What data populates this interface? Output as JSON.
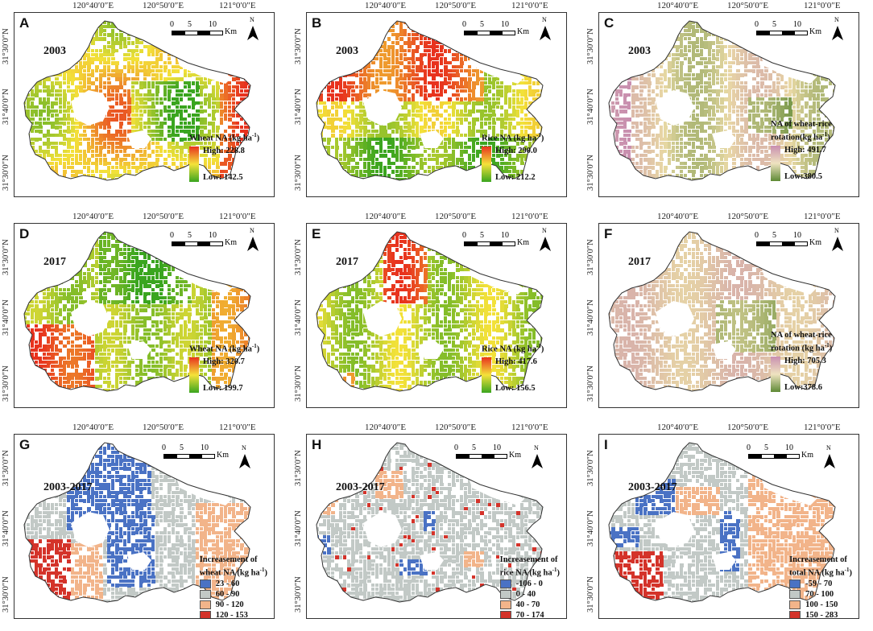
{
  "axes": {
    "lon_ticks": [
      "120°40′0″E",
      "120°50′0″E",
      "121°0′0″E"
    ],
    "lat_ticks": [
      "31°30′0″N",
      "31°40′0″N",
      "31°30′0″N"
    ]
  },
  "scalebar": {
    "ticks": [
      "0",
      "5",
      "10"
    ],
    "unit": "Km",
    "north": "N"
  },
  "colors": {
    "wheat_high": "#e8321e",
    "wheat_low": "#3aa51f",
    "rotation_high": "#c98fb0",
    "rotation_low": "#5e8a35",
    "class_blue": "#4a72c4",
    "class_grey": "#c2c9c6",
    "class_peach": "#f2b48a",
    "class_red": "#d4332a"
  },
  "panels": [
    {
      "label": "A",
      "year": "2003",
      "legend_title": [
        "Wheat NA (kg ha",
        "-1",
        ")"
      ],
      "high": "High: 228.8",
      "low": "Low: 142.5"
    },
    {
      "label": "B",
      "year": "2003",
      "legend_title": [
        "Rice NA (kg ha",
        "-1",
        ")"
      ],
      "high": "High: 290.0",
      "low": "Low: 212.2"
    },
    {
      "label": "C",
      "year": "2003",
      "legend_title": [
        "NA of wheat-rice",
        "rotation(kg ha",
        "-1",
        ")"
      ],
      "high": "High: 491.7",
      "low": "Low:380.5"
    },
    {
      "label": "D",
      "year": "2017",
      "legend_title": [
        "Wheat NA (kg ha",
        "-1",
        ")"
      ],
      "high": "High: 320.7",
      "low": "Low: 199.7"
    },
    {
      "label": "E",
      "year": "2017",
      "legend_title": [
        "Rice NA (kg ha",
        "-1",
        ")"
      ],
      "high": "High: 417.6",
      "low": "Low: 156.5"
    },
    {
      "label": "F",
      "year": "2017",
      "legend_title": [
        "NA of wheat-rice",
        "rotation (kg ha",
        "-1",
        ")"
      ],
      "high": "High: 705.3",
      "low": "Low:378.6"
    },
    {
      "label": "G",
      "year": "2003-2017",
      "legend_title": [
        "Increasement of",
        "wheat NA (kg ha",
        "-1",
        ")"
      ],
      "classes": [
        "23 - 60",
        "60 - 90",
        "90 - 120",
        "120 - 153"
      ]
    },
    {
      "label": "H",
      "year": "2003-2017",
      "legend_title": [
        "Increasement of",
        "rice NA (kg ha",
        "-1",
        ")"
      ],
      "classes": [
        "-106 - 0",
        "0 - 40",
        "40 - 70",
        "70 - 174"
      ]
    },
    {
      "label": "I",
      "year": "2003-2017",
      "legend_title": [
        "Increasement of",
        "total NA (kg ha",
        "-1",
        ")"
      ],
      "classes": [
        "-59 - 70",
        "70 - 100",
        "100 - 150",
        "150 - 283"
      ]
    }
  ]
}
